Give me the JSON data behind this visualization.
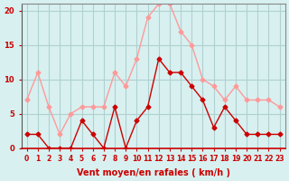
{
  "hours": [
    0,
    1,
    2,
    3,
    4,
    5,
    6,
    7,
    8,
    9,
    10,
    11,
    12,
    13,
    14,
    15,
    16,
    17,
    18,
    19,
    20,
    21,
    22,
    23
  ],
  "wind_mean": [
    2,
    2,
    0,
    0,
    0,
    4,
    2,
    0,
    6,
    0,
    4,
    6,
    13,
    11,
    11,
    9,
    7,
    3,
    6,
    4,
    2,
    2,
    2,
    2
  ],
  "wind_gust": [
    7,
    11,
    6,
    2,
    5,
    6,
    6,
    6,
    11,
    9,
    13,
    19,
    21,
    21,
    17,
    15,
    10,
    9,
    7,
    9,
    7,
    7,
    7,
    6
  ],
  "line_mean_color": "#cc0000",
  "line_gust_color": "#ff9999",
  "bg_color": "#d8f0f0",
  "grid_color": "#b0d0d0",
  "axis_color": "#cc0000",
  "tick_color": "#cc0000",
  "xlabel": "Vent moyen/en rafales ( km/h )",
  "xlabel_color": "#cc0000",
  "ylim": [
    0,
    21
  ],
  "yticks": [
    0,
    5,
    10,
    15,
    20
  ],
  "title_color": "#cc0000"
}
